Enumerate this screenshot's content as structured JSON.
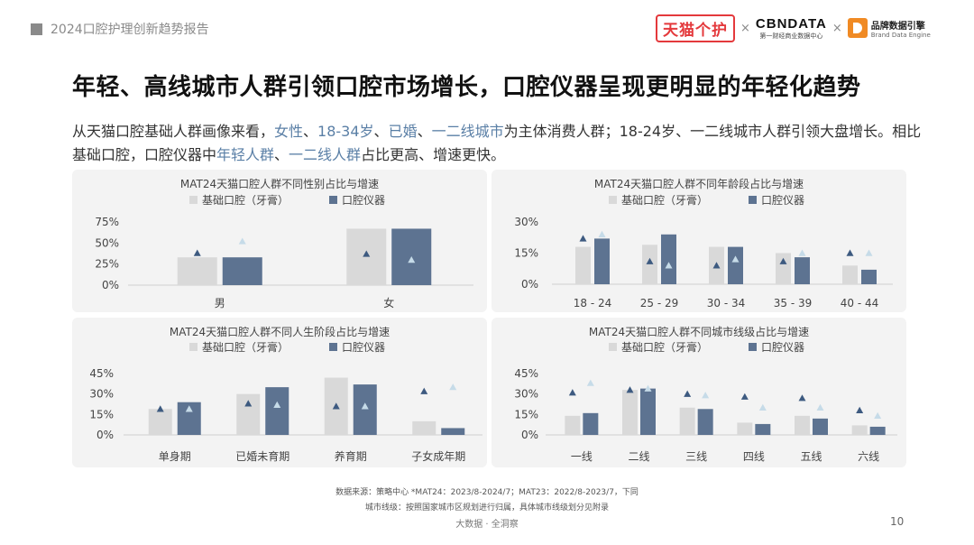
{
  "header": {
    "report_title": "2024口腔护理创新趋势报告",
    "logo_tmall": "天猫个护",
    "logo_x1": "×",
    "logo_cbn": "CBNDATA",
    "logo_cbn_sub": "第一财经商业数据中心",
    "logo_x2": "×",
    "logo_bde_cn": "品牌数据引擎",
    "logo_bde_en": "Brand Data Engine"
  },
  "title": "年轻、高线城市人群引领口腔市场增长，口腔仪器呈现更明显的年轻化趋势",
  "description": {
    "p1": "从天猫口腔基础人群画像来看，",
    "h1": "女性",
    "s1": "、",
    "h2": "18-34岁",
    "s2": "、",
    "h3": "已婚",
    "s3": "、",
    "h4": "一二线城市",
    "p2": "为主体消费人群；18-24岁、一二线城市人群引领大盘增长。相比基础口腔，口腔仪器中",
    "h5": "年轻人群",
    "s4": "、",
    "h6": "一二线人群",
    "p3": "占比更高、增速更快。"
  },
  "colors": {
    "base": "#d9d9d9",
    "device": "#5d7391",
    "base_marker": "#3d5a80",
    "device_marker": "#c6dbe8",
    "highlight": "#5a7fa6"
  },
  "chart_data": [
    {
      "type": "bar",
      "title": "MAT24天猫口腔人群不同性别占比与增速",
      "categories": [
        "男",
        "女"
      ],
      "yticks": [
        "75%",
        "50%",
        "25%",
        "0%"
      ],
      "ylim": [
        0,
        75
      ],
      "series": [
        {
          "name": "基础口腔（牙膏）",
          "values": [
            33,
            67
          ],
          "growth_marker": [
            38,
            37
          ]
        },
        {
          "name": "口腔仪器",
          "values": [
            33,
            67
          ],
          "growth_marker": [
            52,
            30
          ]
        }
      ]
    },
    {
      "type": "bar",
      "title": "MAT24天猫口腔人群不同年龄段占比与增速",
      "categories": [
        "18 - 24",
        "25 - 29",
        "30 - 34",
        "35 - 39",
        "40 - 44"
      ],
      "yticks": [
        "30%",
        "15%",
        "0%"
      ],
      "ylim": [
        0,
        30
      ],
      "series": [
        {
          "name": "基础口腔（牙膏）",
          "values": [
            18,
            19,
            18,
            15,
            9
          ],
          "growth_marker": [
            22,
            11,
            9,
            11,
            15
          ]
        },
        {
          "name": "口腔仪器",
          "values": [
            22,
            24,
            18,
            13,
            7
          ],
          "growth_marker": [
            24,
            9,
            12,
            15,
            15
          ]
        }
      ]
    },
    {
      "type": "bar",
      "title": "MAT24天猫口腔人群不同人生阶段占比与增速",
      "categories": [
        "单身期",
        "已婚未育期",
        "养育期",
        "子女成年期"
      ],
      "yticks": [
        "45%",
        "30%",
        "15%",
        "0%"
      ],
      "ylim": [
        0,
        45
      ],
      "series": [
        {
          "name": "基础口腔（牙膏）",
          "values": [
            19,
            30,
            42,
            10
          ],
          "growth_marker": [
            19,
            23,
            21,
            32
          ]
        },
        {
          "name": "口腔仪器",
          "values": [
            24,
            35,
            37,
            5
          ],
          "growth_marker": [
            19,
            22,
            21,
            35
          ]
        }
      ]
    },
    {
      "type": "bar",
      "title": "MAT24天猫口腔人群不同城市线级占比与增速",
      "categories": [
        "一线",
        "二线",
        "三线",
        "四线",
        "五线",
        "六线"
      ],
      "yticks": [
        "45%",
        "30%",
        "15%",
        "0%"
      ],
      "ylim": [
        0,
        45
      ],
      "series": [
        {
          "name": "基础口腔（牙膏）",
          "values": [
            14,
            33,
            20,
            9,
            14,
            7
          ],
          "growth_marker": [
            31,
            33,
            30,
            28,
            27,
            18
          ]
        },
        {
          "name": "口腔仪器",
          "values": [
            16,
            34,
            19,
            8,
            12,
            6
          ],
          "growth_marker": [
            38,
            34,
            29,
            20,
            20,
            14
          ]
        }
      ]
    }
  ],
  "footer": {
    "source": "数据来源：策略中心    *MAT24：2023/8-2024/7；MAT23：2022/8-2023/7，下同",
    "city_note": "城市线级：按照国家城市区规划进行归属，具体城市线级划分见附录",
    "brand": "大数据 · 全洞察",
    "page": "10"
  }
}
